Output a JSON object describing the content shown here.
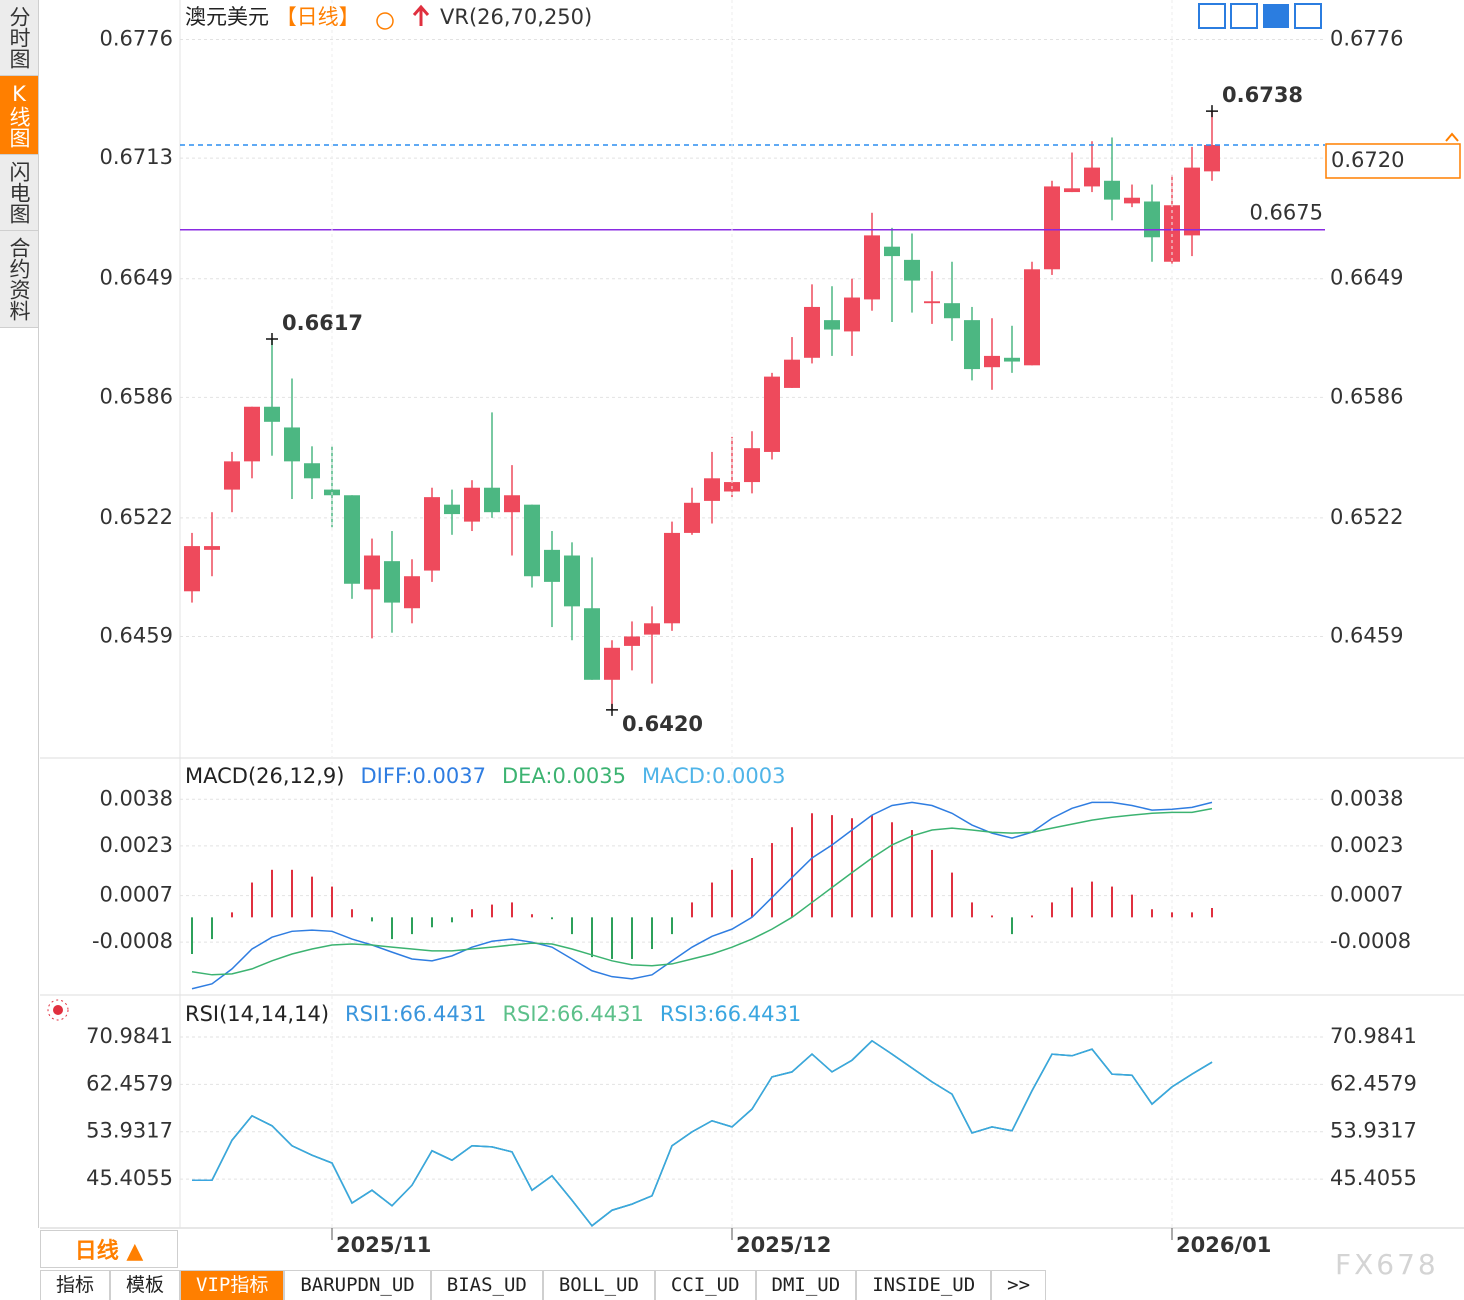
{
  "sidebar": [
    "分时图",
    "K线图",
    "闪电图",
    "合约资料"
  ],
  "header": {
    "symbol": "澳元美元",
    "period": "【日线】",
    "indicator": "VR(26,70,250)"
  },
  "chart_data": [
    {
      "type": "candlestick",
      "categories": [
        null,
        null,
        null,
        null,
        null,
        null,
        null,
        "2025/11",
        null,
        null,
        null,
        null,
        null,
        null,
        null,
        null,
        null,
        null,
        null,
        null,
        null,
        null,
        null,
        null,
        null,
        null,
        null,
        "2025/12",
        null,
        null,
        null,
        null,
        null,
        null,
        null,
        null,
        null,
        null,
        null,
        null,
        null,
        null,
        null,
        null,
        null,
        null,
        null,
        null,
        null,
        "2026/01",
        null,
        null
      ],
      "open": [
        0.6483,
        0.6505,
        0.6537,
        0.6552,
        0.6581,
        0.657,
        0.6551,
        0.6537,
        0.6534,
        0.6484,
        0.6499,
        0.6474,
        0.6494,
        0.6529,
        0.652,
        0.6538,
        0.6525,
        0.6529,
        0.6505,
        0.6502,
        0.6474,
        0.6436,
        0.6454,
        0.646,
        0.6466,
        0.6514,
        0.6531,
        0.6536,
        0.6541,
        0.6557,
        0.6591,
        0.6607,
        0.6627,
        0.6621,
        0.6638,
        0.6666,
        0.6659,
        0.6636,
        0.6636,
        0.6627,
        0.6602,
        0.6607,
        0.6603,
        0.6654,
        0.6695,
        0.6698,
        0.6701,
        0.6689,
        0.669,
        0.6658,
        0.6672,
        0.6706
      ],
      "high": [
        0.6514,
        0.6525,
        0.6557,
        0.6581,
        0.6617,
        0.6596,
        0.656,
        0.656,
        0.6534,
        0.6511,
        0.6515,
        0.65,
        0.6538,
        0.6537,
        0.6542,
        0.6578,
        0.655,
        0.6529,
        0.6515,
        0.6509,
        0.6501,
        0.6457,
        0.6467,
        0.6475,
        0.652,
        0.6538,
        0.6557,
        0.6565,
        0.6568,
        0.6599,
        0.6618,
        0.6646,
        0.6645,
        0.6649,
        0.6684,
        0.6676,
        0.6673,
        0.6653,
        0.6658,
        0.6634,
        0.6628,
        0.6624,
        0.6658,
        0.6701,
        0.6716,
        0.6722,
        0.6724,
        0.6699,
        0.6699,
        0.6704,
        0.6719,
        0.6738
      ],
      "low": [
        0.6477,
        0.6491,
        0.6525,
        0.6543,
        0.6555,
        0.6532,
        0.6532,
        0.6517,
        0.6479,
        0.6458,
        0.6461,
        0.6466,
        0.6488,
        0.6513,
        0.6515,
        0.6522,
        0.6502,
        0.6485,
        0.6464,
        0.6457,
        0.6436,
        0.642,
        0.6441,
        0.6434,
        0.6462,
        0.6513,
        0.6519,
        0.6533,
        0.6535,
        0.6553,
        0.6591,
        0.6604,
        0.6608,
        0.6608,
        0.6632,
        0.6626,
        0.6631,
        0.6625,
        0.6616,
        0.6595,
        0.659,
        0.6599,
        0.6603,
        0.6651,
        0.6695,
        0.6695,
        0.668,
        0.6687,
        0.6658,
        0.6657,
        0.6661,
        0.6701
      ],
      "close": [
        0.6507,
        0.6507,
        0.6552,
        0.6581,
        0.6573,
        0.6552,
        0.6543,
        0.6534,
        0.6487,
        0.6502,
        0.6477,
        0.6491,
        0.6533,
        0.6524,
        0.6538,
        0.6525,
        0.6534,
        0.6491,
        0.6488,
        0.6475,
        0.6436,
        0.6453,
        0.6459,
        0.6466,
        0.6514,
        0.653,
        0.6543,
        0.6541,
        0.6559,
        0.6597,
        0.6606,
        0.6634,
        0.6622,
        0.6639,
        0.6672,
        0.6661,
        0.6648,
        0.6637,
        0.6628,
        0.6601,
        0.6608,
        0.6605,
        0.6654,
        0.6698,
        0.6697,
        0.6708,
        0.6691,
        0.6692,
        0.6671,
        0.6688,
        0.6708,
        0.672
      ],
      "up_color": "#ee4a5c",
      "down_color": "#4cb782",
      "ylim": [
        0.6395,
        0.6797
      ],
      "yticks": [
        0.6776,
        0.6713,
        0.6649,
        0.6586,
        0.6522,
        0.6459
      ],
      "grid": true,
      "price_line": {
        "value": 0.672,
        "label": "0.6720",
        "color": "#2b8ef0"
      },
      "hlines": [
        {
          "value": 0.6675,
          "color": "#8a2be2"
        }
      ],
      "annotations": [
        {
          "value": 0.6738,
          "label": "0.6738"
        },
        {
          "value": 0.6617,
          "label": "0.6617"
        },
        {
          "value": 0.642,
          "label": "0.6420"
        }
      ]
    },
    {
      "type": "macd",
      "title": "MACD(26,12,9)",
      "ylim": [
        -0.0025,
        0.005
      ],
      "yticks": [
        0.0038,
        0.0023,
        0.0007,
        -0.0008
      ],
      "grid": true,
      "series": [
        {
          "name": "DIFF:0.0037",
          "color": "#2f7de1",
          "values": [
            -0.0023,
            -0.00214,
            -0.00166,
            -0.00102,
            -0.00064,
            -0.00045,
            -0.00041,
            -0.00045,
            -0.0007,
            -0.00089,
            -0.00112,
            -0.00134,
            -0.0014,
            -0.00124,
            -0.00096,
            -0.00077,
            -0.0007,
            -0.0008,
            -0.00096,
            -0.00134,
            -0.00172,
            -0.00191,
            -0.00198,
            -0.00185,
            -0.0014,
            -0.00096,
            -0.00061,
            -0.00038,
            0,
            0.00064,
            0.00128,
            0.00191,
            0.00233,
            0.00281,
            0.00329,
            0.0036,
            0.0037,
            0.0036,
            0.00335,
            0.00297,
            0.00271,
            0.00255,
            0.00274,
            0.00319,
            0.00351,
            0.0037,
            0.0037,
            0.0036,
            0.00345,
            0.00348,
            0.00354,
            0.0037
          ]
        },
        {
          "name": "DEA:0.0035",
          "color": "#3cb371",
          "values": [
            -0.00175,
            -0.00185,
            -0.00182,
            -0.00166,
            -0.0014,
            -0.00118,
            -0.00102,
            -0.00089,
            -0.00086,
            -0.00089,
            -0.00096,
            -0.00102,
            -0.00108,
            -0.00108,
            -0.00102,
            -0.00096,
            -0.00089,
            -0.00083,
            -0.00086,
            -0.00102,
            -0.00121,
            -0.0014,
            -0.00153,
            -0.00156,
            -0.0015,
            -0.00134,
            -0.00118,
            -0.00096,
            -0.0007,
            -0.00038,
            0,
            0.00048,
            0.00096,
            0.00144,
            0.00191,
            0.00233,
            0.00262,
            0.00281,
            0.00287,
            0.00281,
            0.00274,
            0.00271,
            0.00274,
            0.00287,
            0.003,
            0.00313,
            0.00322,
            0.00329,
            0.00335,
            0.00338,
            0.00338,
            0.0035
          ]
        },
        {
          "name": "MACD:0.0003",
          "color": "#4fb4e8",
          "type": "histogram",
          "up_color": "#e0303f",
          "down_color": "#2ca05a",
          "values": [
            -0.00118,
            -0.0007,
            0.00016,
            0.00112,
            0.00153,
            0.00153,
            0.00131,
            0.00099,
            0.00026,
            -0.00013,
            -0.0007,
            -0.00054,
            -0.00032,
            -0.00016,
            0.00026,
            0.00041,
            0.00048,
            0.0001,
            -6e-05,
            -0.00054,
            -0.00128,
            -0.00134,
            -0.00134,
            -0.00102,
            -0.00054,
            0.00048,
            0.00112,
            0.00153,
            0.00191,
            0.00239,
            0.0029,
            0.00335,
            0.00329,
            0.00319,
            0.00329,
            0.00306,
            0.00281,
            0.00217,
            0.00144,
            0.00048,
            6e-05,
            -0.00054,
            6e-05,
            0.00048,
            0.00096,
            0.00115,
            0.00099,
            0.00073,
            0.00026,
            0.00016,
            0.00016,
            0.0003
          ]
        }
      ]
    },
    {
      "type": "line",
      "title": "RSI(14,14,14)",
      "ylim": [
        36.6,
        78
      ],
      "yticks": [
        70.9841,
        62.4579,
        53.9317,
        45.4055
      ],
      "grid": true,
      "series": [
        {
          "name": "RSI1:66.4431",
          "color": "#3a95dc",
          "values": [
            45.2,
            45.2,
            52.4,
            56.8,
            55.0,
            51.4,
            49.7,
            48.3,
            41.1,
            43.4,
            40.6,
            44.3,
            50.5,
            48.8,
            51.4,
            51.2,
            50.3,
            43.4,
            46.0,
            41.6,
            37.0,
            39.8,
            40.9,
            42.4,
            51.4,
            53.9,
            55.9,
            54.8,
            58.0,
            63.8,
            64.7,
            67.9,
            64.7,
            66.8,
            70.3,
            67.9,
            65.4,
            62.9,
            60.7,
            53.7,
            54.8,
            54.1,
            61.3,
            67.9,
            67.6,
            68.8,
            64.3,
            64.1,
            58.9,
            62.0,
            64.3,
            66.4431
          ]
        },
        {
          "name": "RSI2:66.4431",
          "color": "#5cc08a",
          "values": [
            45.2,
            45.2,
            52.4,
            56.8,
            55.0,
            51.4,
            49.7,
            48.3,
            41.1,
            43.4,
            40.6,
            44.3,
            50.5,
            48.8,
            51.4,
            51.2,
            50.3,
            43.4,
            46.0,
            41.6,
            37.0,
            39.8,
            40.9,
            42.4,
            51.4,
            53.9,
            55.9,
            54.8,
            58.0,
            63.8,
            64.7,
            67.9,
            64.7,
            66.8,
            70.3,
            67.9,
            65.4,
            62.9,
            60.7,
            53.7,
            54.8,
            54.1,
            61.3,
            67.9,
            67.6,
            68.8,
            64.3,
            64.1,
            58.9,
            62.0,
            64.3,
            66.4431
          ]
        },
        {
          "name": "RSI3:66.4431",
          "color": "#3aa6e0",
          "values": [
            45.2,
            45.2,
            52.4,
            56.8,
            55.0,
            51.4,
            49.7,
            48.3,
            41.1,
            43.4,
            40.6,
            44.3,
            50.5,
            48.8,
            51.4,
            51.2,
            50.3,
            43.4,
            46.0,
            41.6,
            37.0,
            39.8,
            40.9,
            42.4,
            51.4,
            53.9,
            55.9,
            54.8,
            58.0,
            63.8,
            64.7,
            67.9,
            64.7,
            66.8,
            70.3,
            67.9,
            65.4,
            62.9,
            60.7,
            53.7,
            54.8,
            54.1,
            61.3,
            67.9,
            67.6,
            68.8,
            64.3,
            64.1,
            58.9,
            62.0,
            64.3,
            66.4431
          ]
        }
      ]
    }
  ],
  "footer": {
    "period_button": "日线 ▲",
    "tabs": [
      "指标",
      "模板",
      "VIP指标",
      "BARUPDN_UD",
      "BIAS_UD",
      "BOLL_UD",
      "CCI_UD",
      "DMI_UD",
      "INSIDE_UD",
      ">>"
    ],
    "watermark": "FX678"
  }
}
